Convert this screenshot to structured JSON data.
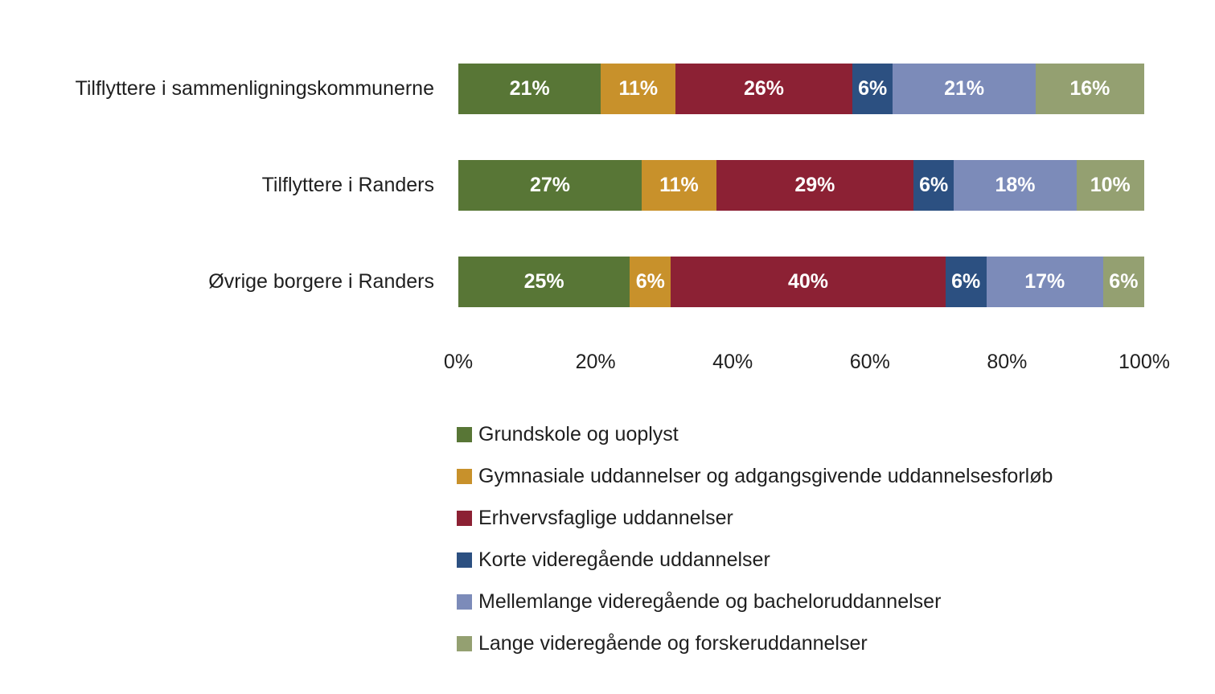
{
  "chart_data": {
    "type": "bar",
    "orientation": "horizontal",
    "stacked": true,
    "categories": [
      "Tilflyttere i sammenligningskommunerne",
      "Tilflyttere i Randers",
      "Øvrige borgere i Randers"
    ],
    "series": [
      {
        "name": "Grundskole og uoplyst",
        "color": "#587636",
        "values": [
          21,
          27,
          25
        ]
      },
      {
        "name": "Gymnasiale uddannelser og adgangsgivende uddannelsesforløb",
        "color": "#C8912B",
        "values": [
          11,
          11,
          6
        ]
      },
      {
        "name": "Erhvervsfaglige uddannelser",
        "color": "#8C2134",
        "values": [
          26,
          29,
          40
        ]
      },
      {
        "name": "Korte videregående uddannelser",
        "color": "#2C5081",
        "values": [
          6,
          6,
          6
        ]
      },
      {
        "name": "Mellemlange videregående og bacheloruddannelser",
        "color": "#7C8BB9",
        "values": [
          21,
          18,
          17
        ]
      },
      {
        "name": "Lange videregående og forskeruddannelser",
        "color": "#94A071",
        "values": [
          16,
          10,
          6
        ]
      }
    ],
    "value_label_format": "{v}%",
    "x_axis": {
      "ticks": [
        "0%",
        "20%",
        "40%",
        "60%",
        "80%",
        "100%"
      ],
      "range": [
        0,
        100
      ]
    },
    "legend_position": "bottom",
    "grid": false,
    "title": "",
    "value_label_color": "#ffffff",
    "text_color": "#1f1f1f"
  }
}
